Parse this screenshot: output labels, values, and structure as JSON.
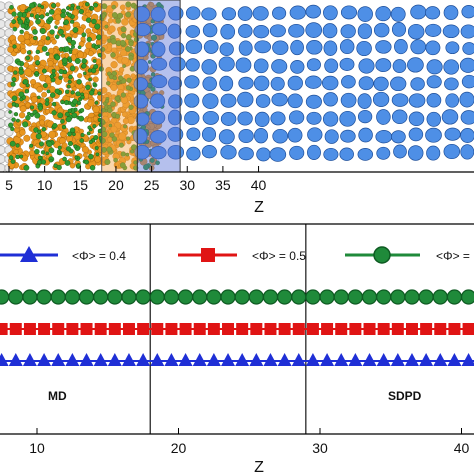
{
  "chart_data": [
    {
      "type": "scatter",
      "description_kind": "molecular-snapshot",
      "xlabel": "Z",
      "xticks": [
        "5",
        "10",
        "15",
        "20",
        "25",
        "30",
        "35",
        "40"
      ],
      "xlim": [
        4.5,
        45.5
      ],
      "highlight_bands": [
        {
          "x0": 18,
          "x1": 23,
          "color": "#f4a64a"
        },
        {
          "x0": 23,
          "x1": 29,
          "color": "#5b74d8"
        }
      ],
      "colors": {
        "orange_particles": "#e8961e",
        "green_particles": "#2f9a2f",
        "blue_particles": "#4e8fe6",
        "white_wall": "#e8e8e8"
      }
    },
    {
      "type": "line",
      "xlabel": "Z",
      "xticks": [
        "10",
        "20",
        "30",
        "40"
      ],
      "xlim": [
        5.5,
        46
      ],
      "grid": false,
      "legend_placement": "top",
      "vlines": [
        18,
        29
      ],
      "region_labels": [
        "MD",
        "SDPD"
      ],
      "series": [
        {
          "name": "<Φ> = 0.4",
          "color": "#1f2fd6",
          "marker": "triangle",
          "x_start": 5.5,
          "x_step": 1.0,
          "count": 41,
          "y": 0.4
        },
        {
          "name": "<Φ> = 0.5",
          "color": "#e01414",
          "marker": "square",
          "x_start": 5.5,
          "x_step": 1.0,
          "count": 41,
          "y": 0.5
        },
        {
          "name": "<Φ> = ",
          "color": "#1f8a3a",
          "marker": "circle",
          "x_start": 5.5,
          "x_step": 1.0,
          "count": 41,
          "y": 0.6
        }
      ],
      "ylim": [
        0.3,
        0.67
      ]
    }
  ]
}
